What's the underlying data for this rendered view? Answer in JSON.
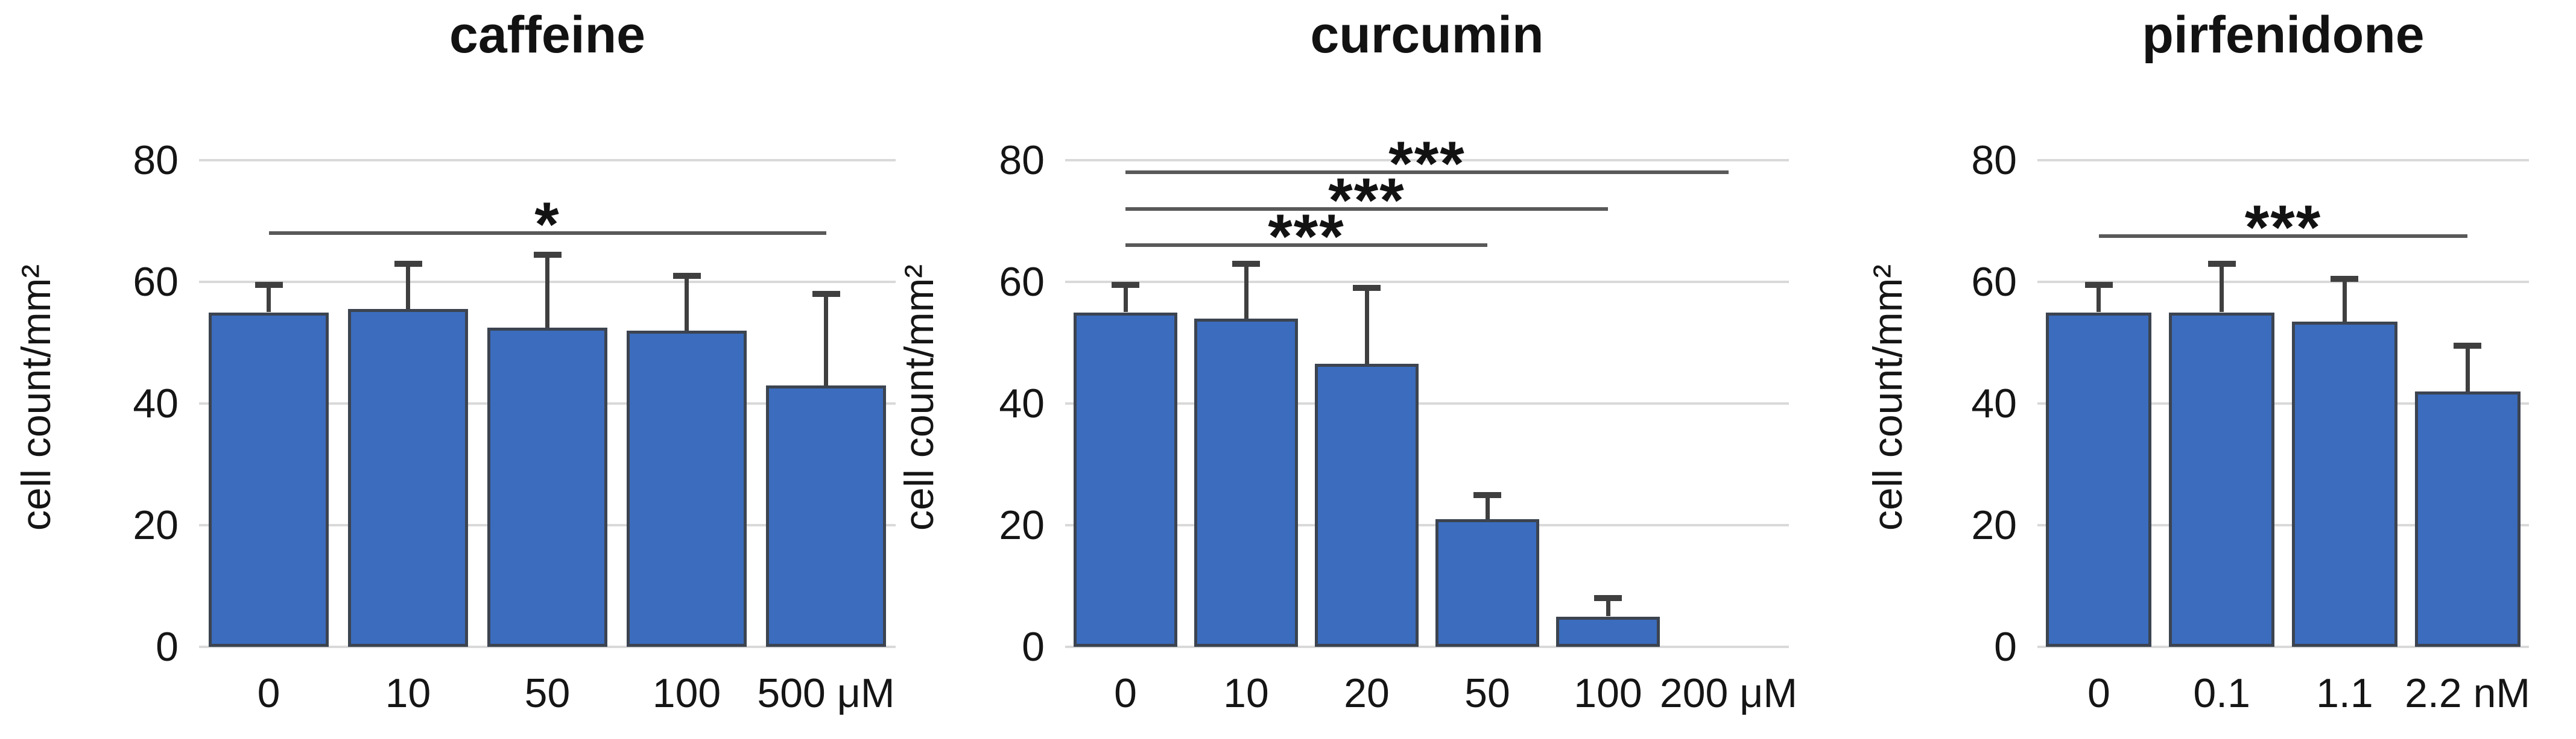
{
  "figure": {
    "background": "#ffffff",
    "shared_ylabel": "cell count/mm²"
  },
  "style": {
    "bar_fill": "#3B6CBD",
    "bar_border": "#3C4450",
    "error_color": "#3F3F3F",
    "sig_line_color": "#595959",
    "grid_color": "#D9D9D9",
    "text_color": "#151515"
  },
  "chart_data": [
    {
      "type": "bar",
      "title": "caffeine",
      "ylabel": "cell count/mm²",
      "xlabel": "",
      "categories": [
        "0",
        "10",
        "50",
        "100",
        "500"
      ],
      "x_unit": "μM",
      "values": [
        55,
        55.5,
        52.5,
        52,
        43
      ],
      "errors_up": [
        4.5,
        7.5,
        12,
        9,
        15
      ],
      "y_ticks": [
        0,
        20,
        40,
        60,
        80
      ],
      "ylim": [
        0,
        85.5
      ],
      "grid": true,
      "legend": "none",
      "significance": [
        {
          "from": 0,
          "to": 4,
          "label": "*",
          "y": 68
        }
      ]
    },
    {
      "type": "bar",
      "title": "curcumin",
      "ylabel": "cell count/mm²",
      "xlabel": "",
      "categories": [
        "0",
        "10",
        "20",
        "50",
        "100",
        "200"
      ],
      "x_unit": "μM",
      "values": [
        55,
        54,
        46.5,
        21,
        5,
        0
      ],
      "errors_up": [
        4.5,
        9,
        12.5,
        4,
        3,
        0
      ],
      "y_ticks": [
        0,
        20,
        40,
        60,
        80
      ],
      "ylim": [
        0,
        85.5
      ],
      "grid": true,
      "legend": "none",
      "significance": [
        {
          "from": 0,
          "to": 3,
          "label": "***",
          "y": 66
        },
        {
          "from": 0,
          "to": 4,
          "label": "***",
          "y": 72
        },
        {
          "from": 0,
          "to": 5,
          "label": "***",
          "y": 78
        }
      ]
    },
    {
      "type": "bar",
      "title": "pirfenidone",
      "ylabel": "cell count/mm²",
      "xlabel": "",
      "categories": [
        "0",
        "0.1",
        "1.1",
        "2.2"
      ],
      "x_unit": "nM",
      "values": [
        55,
        55,
        53.5,
        42
      ],
      "errors_up": [
        4.5,
        8,
        7,
        7.5
      ],
      "y_ticks": [
        0,
        20,
        40,
        60,
        80
      ],
      "ylim": [
        0,
        85.5
      ],
      "grid": true,
      "legend": "none",
      "significance": [
        {
          "from": 0,
          "to": 3,
          "label": "***",
          "y": 67.5
        }
      ]
    }
  ]
}
